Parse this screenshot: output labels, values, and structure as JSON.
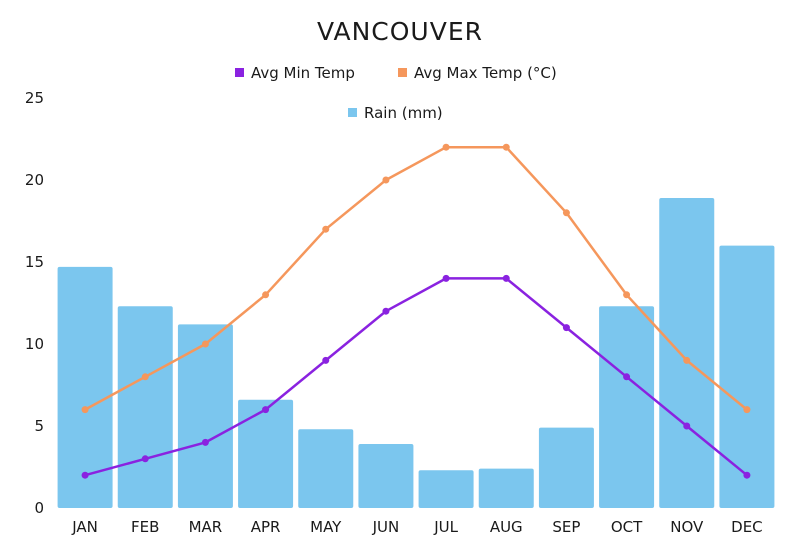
{
  "chart_data": {
    "type": "bar+line",
    "title": "VANCOUVER",
    "xlabel": "",
    "ylabel": "",
    "ylim": [
      0,
      25
    ],
    "yticks": [
      0,
      5,
      10,
      15,
      20,
      25
    ],
    "grid": false,
    "legend_position": "top",
    "categories": [
      "JAN",
      "FEB",
      "MAR",
      "APR",
      "MAY",
      "JUN",
      "JUL",
      "AUG",
      "SEP",
      "OCT",
      "NOV",
      "DEC"
    ],
    "series": [
      {
        "name": "Avg Min Temp",
        "kind": "line",
        "color": "#8a22e0",
        "values": [
          2,
          3,
          4,
          6,
          9,
          12,
          14,
          14,
          11,
          8,
          5,
          2
        ]
      },
      {
        "name": "Avg Max Temp (°C)",
        "kind": "line",
        "color": "#f5975c",
        "values": [
          6,
          8,
          10,
          13,
          17,
          20,
          22,
          22,
          18,
          13,
          9,
          6
        ]
      },
      {
        "name": "Rain (mm)",
        "kind": "bar",
        "color": "#7bc6ee",
        "values": [
          14.7,
          12.3,
          11.2,
          6.6,
          4.8,
          3.9,
          2.3,
          2.4,
          4.9,
          12.3,
          18.9,
          16.0
        ]
      }
    ]
  }
}
